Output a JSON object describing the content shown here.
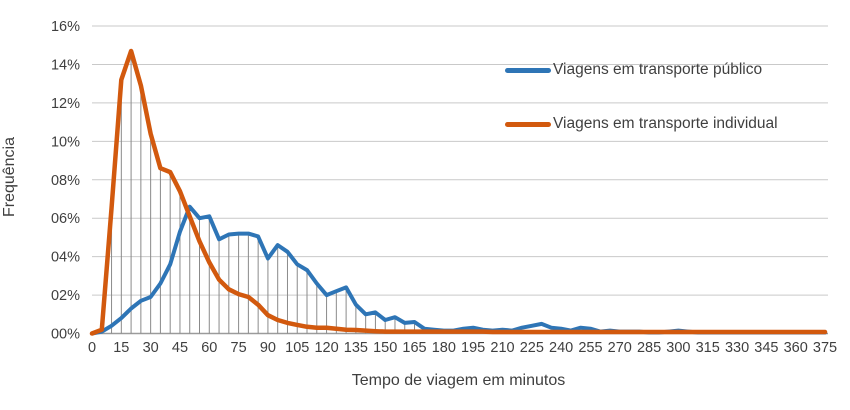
{
  "chart": {
    "y_axis_title": "Frequência",
    "x_axis_title": "Tempo de viagem em minutos",
    "legend": [
      {
        "label": "Viagens em transporte público",
        "color": "#2E75B6"
      },
      {
        "label": "Viagens em transporte individual",
        "color": "#D2590E"
      }
    ]
  },
  "chart_data": {
    "type": "line",
    "title": "",
    "xlabel": "Tempo de viagem em minutos",
    "ylabel": "Frequência",
    "xlim": [
      0,
      375
    ],
    "ylim": [
      0,
      16
    ],
    "x_step_minutes": 5,
    "grid": true,
    "legend_position": "upper-right",
    "drop_lines": true,
    "x_tick_labels": [
      "0",
      "15",
      "30",
      "45",
      "60",
      "75",
      "90",
      "105",
      "120",
      "135",
      "150",
      "165",
      "180",
      "195",
      "210",
      "225",
      "240",
      "255",
      "270",
      "285",
      "300",
      "315",
      "330",
      "345",
      "360",
      "375"
    ],
    "y_tick_labels": [
      "00%",
      "02%",
      "04%",
      "06%",
      "08%",
      "10%",
      "12%",
      "14%",
      "16%"
    ],
    "colors": {
      "gridline": "#C9C9C9",
      "axis_line": "#9B9B9B",
      "drop_line": "#8A8A8A",
      "tick_text": "#3F3F3F"
    },
    "series": [
      {
        "name": "Viagens em transporte público",
        "color": "#2E75B6",
        "stroke_width": 4,
        "values": [
          0.0,
          0.1,
          0.4,
          0.8,
          1.3,
          1.7,
          1.9,
          2.6,
          3.6,
          5.3,
          6.6,
          6.0,
          6.1,
          4.9,
          5.15,
          5.2,
          5.2,
          5.05,
          3.9,
          4.6,
          4.25,
          3.6,
          3.3,
          2.6,
          2.0,
          2.2,
          2.4,
          1.5,
          1.0,
          1.1,
          0.7,
          0.85,
          0.55,
          0.6,
          0.25,
          0.2,
          0.15,
          0.15,
          0.25,
          0.3,
          0.2,
          0.15,
          0.2,
          0.15,
          0.3,
          0.4,
          0.5,
          0.3,
          0.25,
          0.15,
          0.3,
          0.25,
          0.1,
          0.15,
          0.1,
          0.1,
          0.1,
          0.05,
          0.05,
          0.1,
          0.15,
          0.1,
          0.05,
          0.05,
          0.05,
          0.05,
          0.05,
          0.05,
          0.05,
          0.05,
          0.05,
          0.05,
          0.05,
          0.05,
          0.05,
          0.05
        ]
      },
      {
        "name": "Viagens em transporte individual",
        "color": "#D2590E",
        "stroke_width": 4.5,
        "values": [
          0.0,
          0.2,
          6.5,
          13.2,
          14.7,
          12.9,
          10.4,
          8.6,
          8.4,
          7.4,
          6.1,
          4.8,
          3.7,
          2.8,
          2.3,
          2.05,
          1.9,
          1.5,
          0.95,
          0.7,
          0.55,
          0.45,
          0.35,
          0.3,
          0.3,
          0.25,
          0.2,
          0.18,
          0.15,
          0.12,
          0.1,
          0.1,
          0.1,
          0.1,
          0.1,
          0.1,
          0.1,
          0.1,
          0.1,
          0.1,
          0.1,
          0.08,
          0.08,
          0.08,
          0.08,
          0.08,
          0.08,
          0.08,
          0.08,
          0.08,
          0.08,
          0.08,
          0.08,
          0.08,
          0.08,
          0.08,
          0.08,
          0.08,
          0.08,
          0.08,
          0.08,
          0.08,
          0.08,
          0.08,
          0.08,
          0.08,
          0.08,
          0.08,
          0.08,
          0.08,
          0.08,
          0.08,
          0.08,
          0.08,
          0.08,
          0.08
        ]
      }
    ]
  }
}
